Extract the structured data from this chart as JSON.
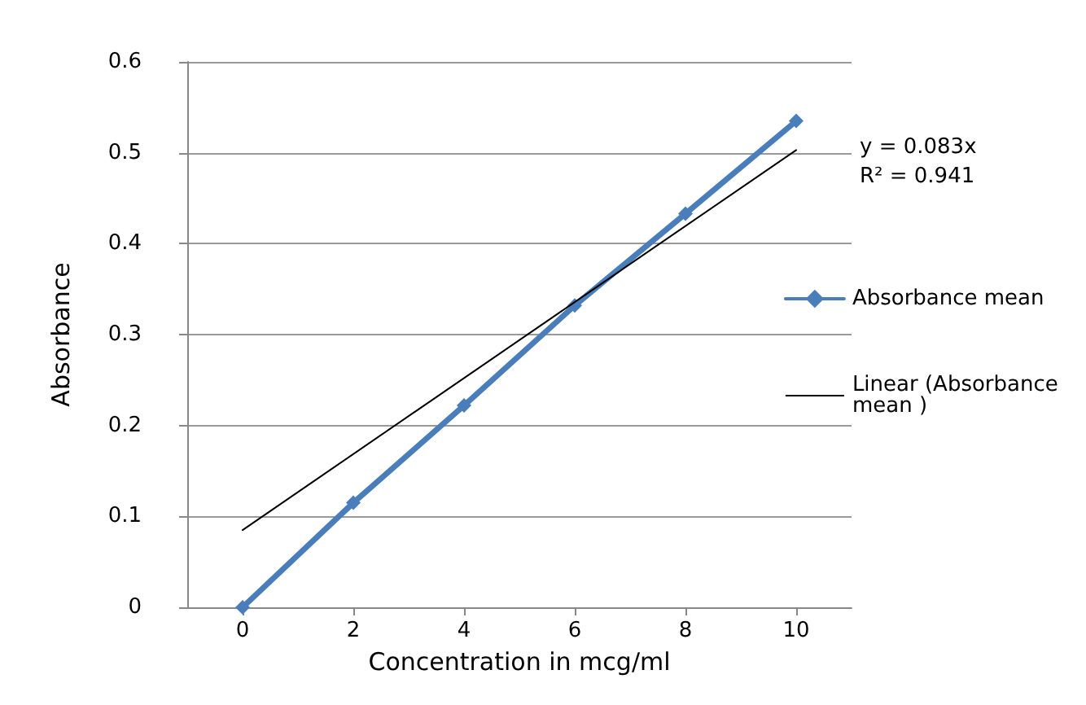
{
  "chart_data": {
    "type": "line",
    "xlabel": "Concentration in mcg/ml",
    "ylabel": "Absorbance",
    "x": [
      0,
      2,
      4,
      6,
      8,
      10
    ],
    "series": [
      {
        "name": "Absorbance mean",
        "color": "#4a7ebb",
        "values": [
          0,
          0.115,
          0.222,
          0.332,
          0.433,
          0.535
        ]
      },
      {
        "name": "Linear (Absorbance mean )",
        "color": "#000000",
        "x": [
          0,
          10
        ],
        "values": [
          0.085,
          0.503
        ],
        "marker": "none"
      }
    ],
    "xlim": [
      -1,
      11
    ],
    "xticks": [
      0,
      2,
      4,
      6,
      8,
      10
    ],
    "ylim": [
      0,
      0.6
    ],
    "yticks": [
      0,
      0.1,
      0.2,
      0.3,
      0.4,
      0.5,
      0.6
    ],
    "grid": "y",
    "legend": "right",
    "marker": "diamond",
    "annotations": [
      "y = 0.083x",
      "R² = 0.941"
    ]
  }
}
